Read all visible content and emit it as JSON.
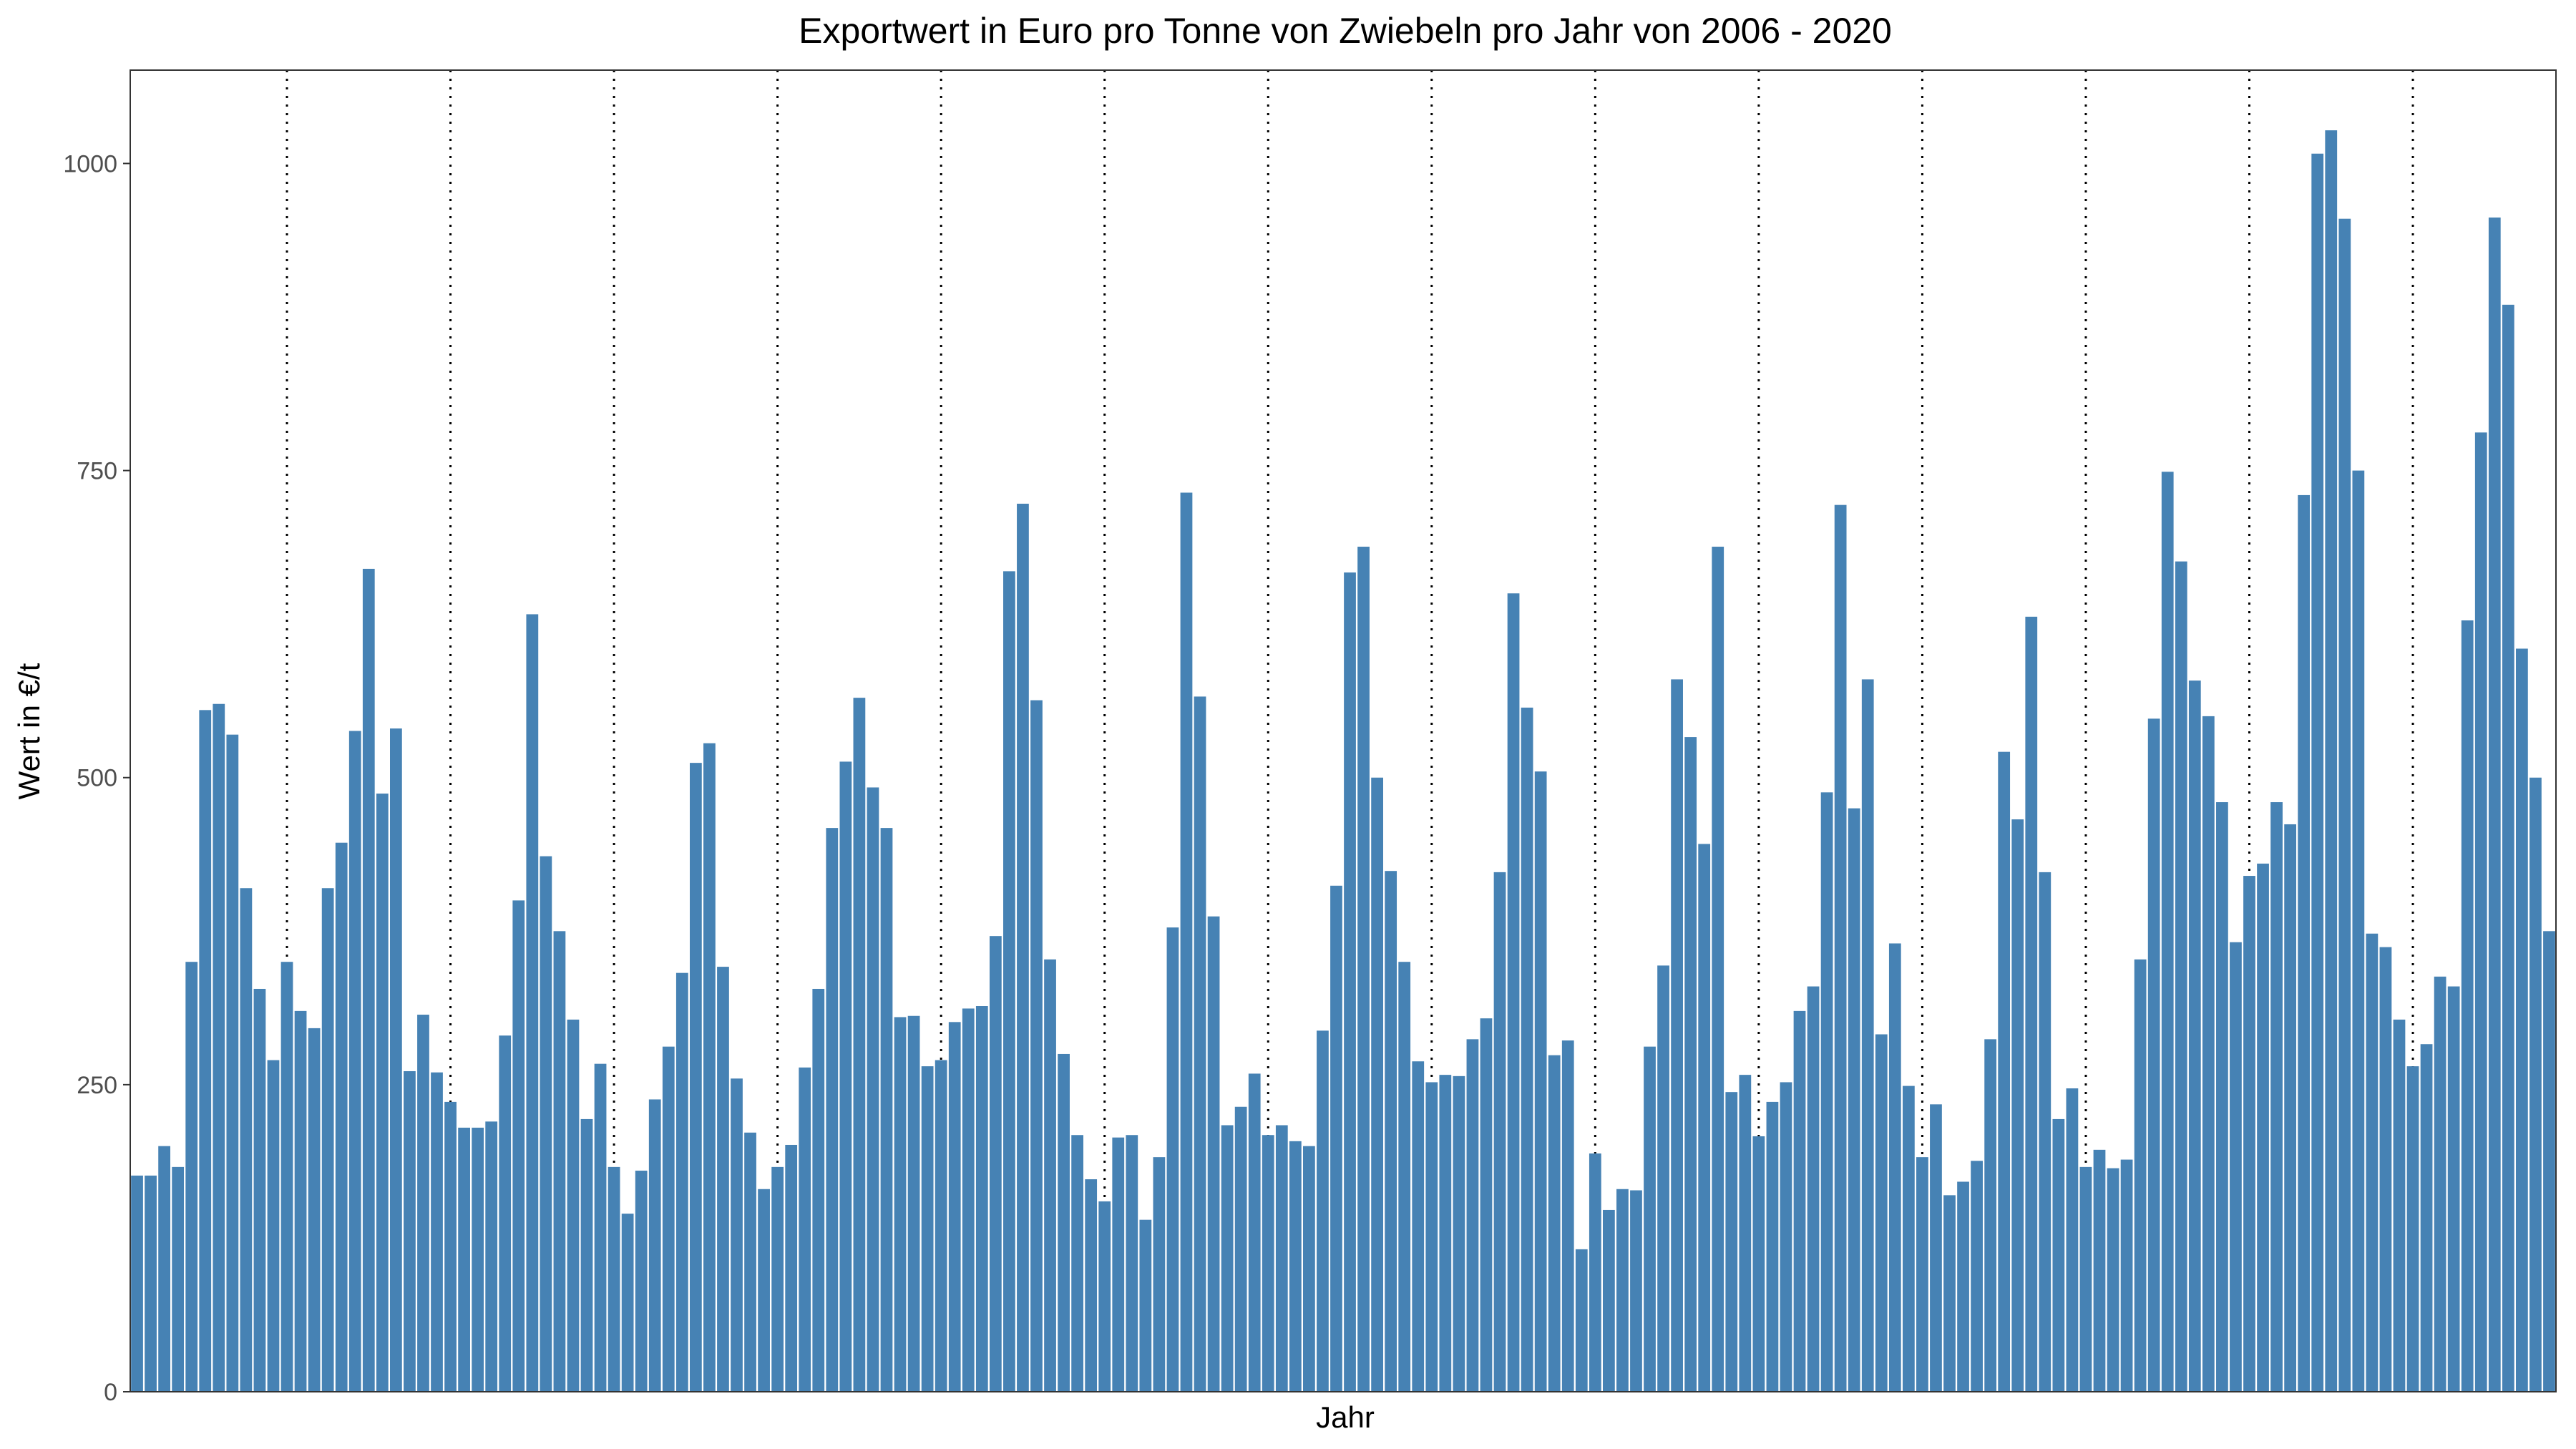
{
  "chart_data": {
    "type": "bar",
    "title": "Exportwert in Euro pro Tonne von Zwiebeln pro Jahr von 2006 - 2020",
    "xlabel": "Jahr",
    "ylabel": "Wert in €/t",
    "ylim": [
      0,
      1076
    ],
    "yticks": [
      0,
      250,
      500,
      750,
      1000
    ],
    "ytick_labels": [
      "0",
      "250",
      "500",
      "750",
      "1000"
    ],
    "grid": false,
    "year_separators": "dotted vertical lines between years",
    "bar_color": "#4682B4",
    "frequency": "monthly",
    "values": [
      176,
      176,
      200,
      183,
      350,
      555,
      560,
      535,
      410,
      328,
      270,
      350,
      310,
      296,
      410,
      447,
      538,
      670,
      487,
      540,
      261,
      307,
      260,
      236,
      215,
      215,
      220,
      290,
      400,
      633,
      436,
      375,
      303,
      222,
      267,
      183,
      145,
      180,
      238,
      281,
      341,
      512,
      528,
      346,
      255,
      211,
      165,
      183,
      201,
      264,
      328,
      459,
      513,
      565,
      492,
      459,
      305,
      306,
      265,
      270,
      301,
      312,
      314,
      371,
      668,
      723,
      563,
      352,
      275,
      209,
      173,
      155,
      207,
      209,
      140,
      191,
      378,
      732,
      566,
      387,
      217,
      232,
      259,
      209,
      217,
      204,
      200,
      294,
      412,
      667,
      688,
      500,
      424,
      350,
      269,
      252,
      258,
      257,
      287,
      304,
      423,
      650,
      557,
      505,
      274,
      286,
      116,
      194,
      148,
      165,
      164,
      281,
      347,
      580,
      533,
      446,
      688,
      244,
      258,
      208,
      236,
      252,
      310,
      330,
      488,
      722,
      475,
      580,
      291,
      365,
      249,
      191,
      234,
      160,
      171,
      188,
      287,
      521,
      466,
      631,
      423,
      222,
      247,
      183,
      197,
      182,
      189,
      352,
      548,
      749,
      676,
      579,
      550,
      480,
      366,
      420,
      430,
      480,
      462,
      730,
      1008,
      1027,
      955,
      750,
      373,
      362,
      303,
      265,
      283,
      338,
      330,
      628,
      781,
      956,
      885,
      605,
      500,
      375
    ]
  }
}
